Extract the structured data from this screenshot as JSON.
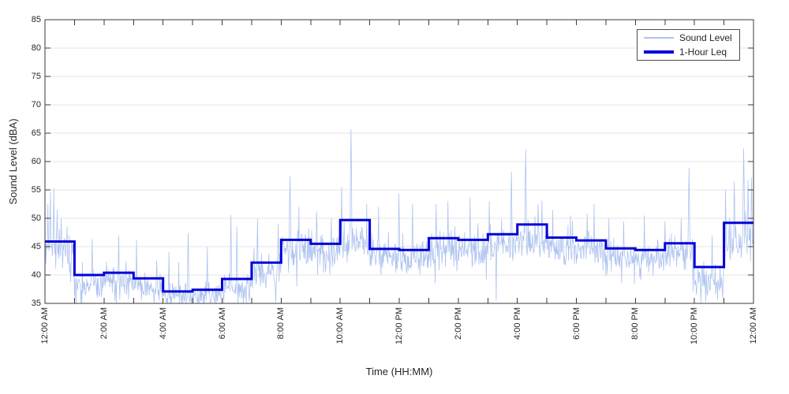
{
  "chart_data": {
    "type": "line",
    "title": "",
    "xlabel": "Time (HH:MM)",
    "ylabel": "Sound Level (dBA)",
    "ylim": [
      35,
      85
    ],
    "xlim_hours": [
      0,
      24
    ],
    "grid": "horizontal-only",
    "background": "#ffffff",
    "axis_color": "#3a3a3a",
    "grid_color": "#e6e6e6",
    "text_color": "#262626",
    "y_ticks": [
      35,
      40,
      45,
      50,
      55,
      60,
      65,
      70,
      75,
      80,
      85
    ],
    "x_major_ticks_hours": [
      0,
      2,
      4,
      6,
      8,
      10,
      12,
      14,
      16,
      18,
      20,
      22,
      24
    ],
    "x_tick_labels": [
      "12:00 AM",
      "2:00 AM",
      "4:00 AM",
      "6:00 AM",
      "8:00 AM",
      "10:00 AM",
      "12:00 PM",
      "2:00 PM",
      "4:00 PM",
      "6:00 PM",
      "8:00 PM",
      "10:00 PM",
      "12:00 AM"
    ],
    "x_minor_tick_interval_hours": 1,
    "legend": {
      "position": "top-right",
      "items": [
        {
          "label": "Sound Level",
          "color": "#aec3f0",
          "line_width": 1
        },
        {
          "label": "1-Hour Leq",
          "color": "#0000d9",
          "line_width": 3
        }
      ]
    },
    "series": [
      {
        "name": "Sound Level",
        "type": "noisy_line",
        "color": "#aec3f0",
        "line_width": 0.8,
        "samples_per_hour": 60,
        "min_clip_dba": 35,
        "seed": 11,
        "hourly_mean_offset_below_leq": [
          1.4,
          1.5,
          1.6,
          1.6,
          0.9,
          1.0,
          1.3,
          1.7,
          1.8,
          1.7,
          4.0,
          1.6,
          1.5,
          1.8,
          1.8,
          2.0,
          3.0,
          1.9,
          1.8,
          1.7,
          1.6,
          1.8,
          2.6,
          3.2
        ],
        "hourly_sd": [
          2.0,
          1.3,
          1.3,
          1.2,
          1.1,
          1.2,
          1.4,
          1.6,
          1.7,
          1.6,
          1.6,
          1.6,
          1.6,
          1.7,
          1.7,
          1.8,
          1.8,
          1.7,
          1.7,
          1.6,
          1.6,
          1.6,
          1.5,
          1.8
        ],
        "spikes_hour_peak": [
          [
            0.1,
            52.5
          ],
          [
            0.18,
            54.6
          ],
          [
            0.3,
            55.3
          ],
          [
            0.42,
            51.5
          ],
          [
            0.55,
            50.0
          ],
          [
            0.75,
            48.5
          ],
          [
            1.6,
            46.3
          ],
          [
            2.5,
            47.0
          ],
          [
            3.1,
            46.2
          ],
          [
            4.2,
            44.0
          ],
          [
            4.85,
            47.4
          ],
          [
            5.5,
            45.0
          ],
          [
            6.3,
            50.6
          ],
          [
            6.5,
            48.5
          ],
          [
            7.2,
            50.0
          ],
          [
            7.9,
            49.0
          ],
          [
            8.3,
            57.4
          ],
          [
            8.6,
            52.0
          ],
          [
            9.2,
            51.2
          ],
          [
            9.7,
            50.0
          ],
          [
            10.37,
            65.7
          ],
          [
            10.9,
            52.5
          ],
          [
            11.3,
            52.0
          ],
          [
            12.0,
            50.5
          ],
          [
            12.45,
            52.5
          ],
          [
            13.25,
            52.5
          ],
          [
            13.65,
            53.0
          ],
          [
            14.4,
            53.8
          ],
          [
            15.05,
            53.0
          ],
          [
            15.8,
            58.2
          ],
          [
            16.28,
            62.2
          ],
          [
            16.7,
            52.5
          ],
          [
            17.2,
            51.5
          ],
          [
            17.8,
            50.5
          ],
          [
            18.6,
            52.5
          ],
          [
            19.1,
            50.0
          ],
          [
            19.6,
            49.5
          ],
          [
            20.3,
            50.5
          ],
          [
            21.0,
            49.5
          ],
          [
            21.55,
            50.0
          ],
          [
            21.82,
            58.9
          ],
          [
            22.6,
            47.0
          ],
          [
            23.35,
            56.5
          ],
          [
            23.66,
            62.3
          ],
          [
            23.82,
            56.8
          ],
          [
            23.93,
            57.2
          ]
        ]
      },
      {
        "name": "1-Hour Leq",
        "type": "stairs",
        "color": "#0000d9",
        "line_width": 3,
        "hourly_leq_dba": [
          45.9,
          40.0,
          40.4,
          39.4,
          37.1,
          37.4,
          39.3,
          42.2,
          46.2,
          45.5,
          49.7,
          44.6,
          44.4,
          46.5,
          46.2,
          47.2,
          48.9,
          46.6,
          46.1,
          44.7,
          44.4,
          45.6,
          41.4,
          49.2
        ]
      }
    ]
  }
}
